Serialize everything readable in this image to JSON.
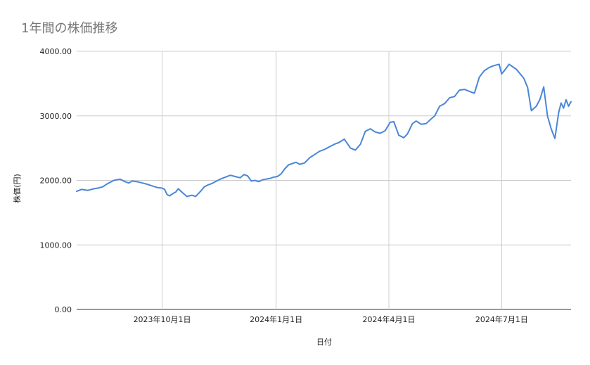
{
  "chart_data": {
    "type": "line",
    "title": "1年間の株価推移",
    "xlabel": "日付",
    "ylabel": "株価(円)",
    "ylim": [
      0,
      4000
    ],
    "yticks": [
      "0.00",
      "1000.00",
      "2000.00",
      "3000.00",
      "4000.00"
    ],
    "xlim": [
      "2023-07-24",
      "2024-08-26"
    ],
    "xticks": [
      {
        "date": "2023-10-01",
        "label": "2023年10月1日"
      },
      {
        "date": "2024-01-01",
        "label": "2024年1月1日"
      },
      {
        "date": "2024-04-01",
        "label": "2024年4月1日"
      },
      {
        "date": "2024-07-01",
        "label": "2024年7月1日"
      }
    ],
    "grid": true,
    "legend": "none",
    "line_color": "#4a86d8",
    "grid_color": "#cccccc",
    "series": [
      {
        "x": [
          "2023-07-24",
          "2023-07-28",
          "2023-08-02",
          "2023-08-07",
          "2023-08-10",
          "2023-08-14",
          "2023-08-18",
          "2023-08-23",
          "2023-08-28",
          "2023-09-01",
          "2023-09-04",
          "2023-09-07",
          "2023-09-12",
          "2023-09-15",
          "2023-09-19",
          "2023-09-22",
          "2023-09-27",
          "2023-10-01",
          "2023-10-03",
          "2023-10-05",
          "2023-10-07",
          "2023-10-10",
          "2023-10-12",
          "2023-10-14",
          "2023-10-18",
          "2023-10-21",
          "2023-10-25",
          "2023-10-28",
          "2023-11-01",
          "2023-11-04",
          "2023-11-07",
          "2023-11-10",
          "2023-11-13",
          "2023-11-17",
          "2023-11-21",
          "2023-11-25",
          "2023-11-29",
          "2023-12-03",
          "2023-12-06",
          "2023-12-09",
          "2023-12-12",
          "2023-12-15",
          "2023-12-18",
          "2023-12-21",
          "2023-12-24",
          "2023-12-27",
          "2023-12-30",
          "2024-01-02",
          "2024-01-05",
          "2024-01-08",
          "2024-01-11",
          "2024-01-14",
          "2024-01-17",
          "2024-01-20",
          "2024-01-24",
          "2024-01-28",
          "2024-02-01",
          "2024-02-05",
          "2024-02-09",
          "2024-02-13",
          "2024-02-17",
          "2024-02-21",
          "2024-02-25",
          "2024-03-01",
          "2024-03-05",
          "2024-03-09",
          "2024-03-13",
          "2024-03-17",
          "2024-03-21",
          "2024-03-25",
          "2024-03-29",
          "2024-04-02",
          "2024-04-05",
          "2024-04-09",
          "2024-04-13",
          "2024-04-16",
          "2024-04-20",
          "2024-04-23",
          "2024-04-27",
          "2024-05-01",
          "2024-05-05",
          "2024-05-08",
          "2024-05-12",
          "2024-05-16",
          "2024-05-20",
          "2024-05-24",
          "2024-05-28",
          "2024-06-01",
          "2024-06-05",
          "2024-06-09",
          "2024-06-13",
          "2024-06-17",
          "2024-06-21",
          "2024-06-25",
          "2024-06-29",
          "2024-07-01",
          "2024-07-04",
          "2024-07-07",
          "2024-07-10",
          "2024-07-13",
          "2024-07-16",
          "2024-07-19",
          "2024-07-22",
          "2024-07-25",
          "2024-07-29",
          "2024-08-01",
          "2024-08-04",
          "2024-08-07",
          "2024-08-10",
          "2024-08-13",
          "2024-08-16",
          "2024-08-18",
          "2024-08-20",
          "2024-08-22",
          "2024-08-24",
          "2024-08-26"
        ],
        "values": [
          1830,
          1860,
          1845,
          1870,
          1880,
          1900,
          1950,
          2000,
          2020,
          1980,
          1960,
          1990,
          1975,
          1960,
          1940,
          1920,
          1890,
          1880,
          1860,
          1780,
          1760,
          1800,
          1820,
          1870,
          1800,
          1750,
          1770,
          1750,
          1830,
          1900,
          1930,
          1950,
          1980,
          2020,
          2050,
          2080,
          2060,
          2040,
          2090,
          2070,
          1990,
          2000,
          1980,
          2010,
          2020,
          2030,
          2050,
          2060,
          2100,
          2180,
          2240,
          2260,
          2280,
          2250,
          2270,
          2350,
          2400,
          2450,
          2480,
          2520,
          2560,
          2590,
          2640,
          2500,
          2470,
          2560,
          2760,
          2800,
          2750,
          2730,
          2770,
          2900,
          2910,
          2700,
          2660,
          2720,
          2880,
          2920,
          2870,
          2880,
          2950,
          3000,
          3150,
          3190,
          3280,
          3300,
          3400,
          3410,
          3380,
          3350,
          3600,
          3700,
          3750,
          3780,
          3800,
          3650,
          3720,
          3800,
          3760,
          3720,
          3650,
          3580,
          3440,
          3080,
          3150,
          3260,
          3450,
          3000,
          2800,
          2650,
          3050,
          3200,
          3120,
          3250,
          3150,
          3220
        ]
      }
    ]
  }
}
